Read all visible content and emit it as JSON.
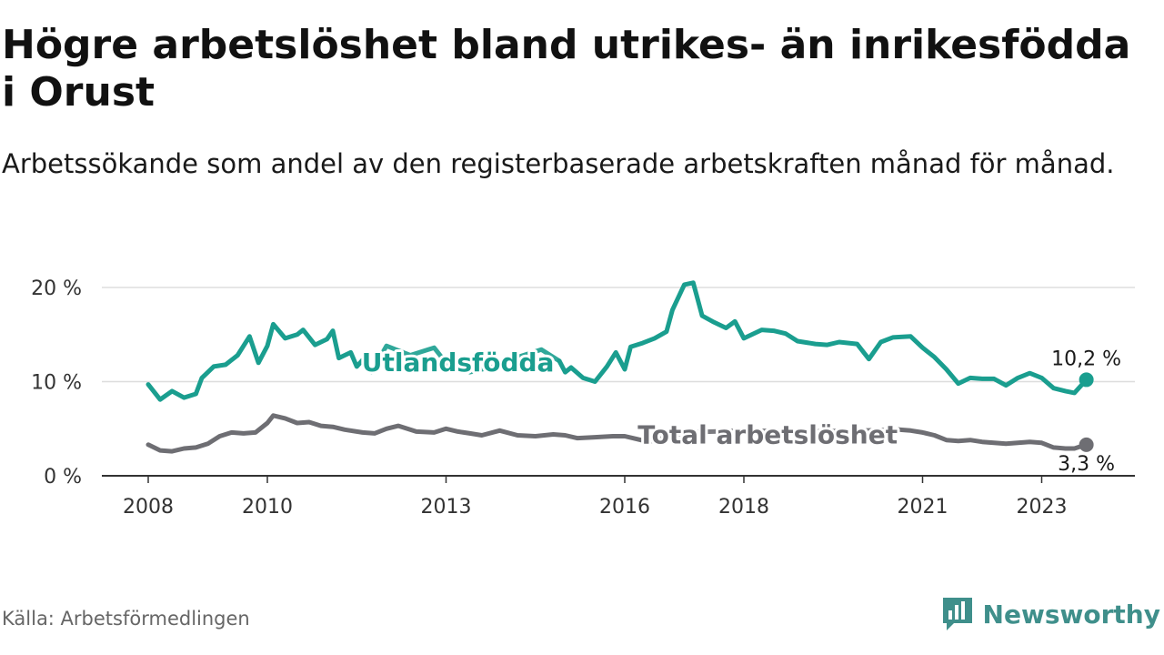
{
  "title": "Högre arbetslöshet bland utrikes- än inrikesfödda i Orust",
  "subtitle": "Arbetssökande som andel av den registerbaserade arbetskraften månad för månad.",
  "source": "Källa: Arbetsförmedlingen",
  "brand": "Newsworthy",
  "colors": {
    "foreign": "#1a9e8f",
    "total": "#6e6e73",
    "brand": "#3f8f8b"
  },
  "chart_data": {
    "type": "line",
    "title": "Högre arbetslöshet bland utrikes- än inrikesfödda i Orust",
    "xlabel": "",
    "ylabel": "",
    "xlim": [
      2008,
      2024.5
    ],
    "ylim": [
      0,
      20.5
    ],
    "x_ticks": [
      {
        "value": 2008,
        "label": "2008"
      },
      {
        "value": 2010,
        "label": "2010"
      },
      {
        "value": 2013,
        "label": "2013"
      },
      {
        "value": 2016,
        "label": "2016"
      },
      {
        "value": 2018,
        "label": "2018"
      },
      {
        "value": 2021,
        "label": "2021"
      },
      {
        "value": 2023,
        "label": "2023"
      }
    ],
    "y_ticks": [
      {
        "value": 0,
        "label": "0 %"
      },
      {
        "value": 10,
        "label": "10 %"
      },
      {
        "value": 20,
        "label": "20 %"
      }
    ],
    "grid": true,
    "series": [
      {
        "name": "Utlandsfödda",
        "color": "#1a9e8f",
        "end_label": "10,2 %",
        "points": [
          [
            2008.0,
            9.7
          ],
          [
            2008.2,
            8.1
          ],
          [
            2008.4,
            9.0
          ],
          [
            2008.6,
            8.3
          ],
          [
            2008.8,
            8.7
          ],
          [
            2008.9,
            10.4
          ],
          [
            2009.1,
            11.6
          ],
          [
            2009.3,
            11.8
          ],
          [
            2009.5,
            12.8
          ],
          [
            2009.7,
            14.8
          ],
          [
            2009.85,
            12.0
          ],
          [
            2010.0,
            13.8
          ],
          [
            2010.1,
            16.1
          ],
          [
            2010.3,
            14.6
          ],
          [
            2010.5,
            15.0
          ],
          [
            2010.6,
            15.5
          ],
          [
            2010.8,
            13.9
          ],
          [
            2011.0,
            14.5
          ],
          [
            2011.1,
            15.4
          ],
          [
            2011.2,
            12.5
          ],
          [
            2011.4,
            13.1
          ],
          [
            2011.5,
            11.6
          ],
          [
            2011.6,
            12.3
          ],
          [
            2011.75,
            11.0
          ]
        ],
        "hidden_points": [
          [
            2011.75,
            11.0
          ],
          [
            2012.0,
            13.8
          ],
          [
            2012.4,
            12.8
          ],
          [
            2012.8,
            13.6
          ],
          [
            2013.0,
            12.0
          ],
          [
            2013.4,
            11.0
          ],
          [
            2013.8,
            11.6
          ],
          [
            2014.2,
            12.6
          ],
          [
            2014.6,
            13.4
          ],
          [
            2014.9,
            12.2
          ]
        ],
        "points_b": [
          [
            2014.9,
            12.2
          ],
          [
            2015.0,
            11.0
          ],
          [
            2015.1,
            11.5
          ],
          [
            2015.3,
            10.4
          ],
          [
            2015.5,
            10.0
          ],
          [
            2015.7,
            11.6
          ],
          [
            2015.85,
            13.1
          ],
          [
            2016.0,
            11.3
          ],
          [
            2016.1,
            13.7
          ],
          [
            2016.3,
            14.1
          ],
          [
            2016.5,
            14.6
          ],
          [
            2016.7,
            15.3
          ],
          [
            2016.8,
            17.6
          ],
          [
            2017.0,
            20.3
          ],
          [
            2017.15,
            20.5
          ],
          [
            2017.3,
            17.0
          ],
          [
            2017.5,
            16.3
          ],
          [
            2017.7,
            15.7
          ],
          [
            2017.85,
            16.4
          ],
          [
            2018.0,
            14.6
          ],
          [
            2018.3,
            15.5
          ],
          [
            2018.5,
            15.4
          ],
          [
            2018.7,
            15.1
          ],
          [
            2018.9,
            14.3
          ],
          [
            2019.2,
            14.0
          ],
          [
            2019.4,
            13.9
          ],
          [
            2019.6,
            14.2
          ],
          [
            2019.9,
            14.0
          ],
          [
            2020.1,
            12.4
          ],
          [
            2020.3,
            14.2
          ],
          [
            2020.5,
            14.7
          ],
          [
            2020.8,
            14.8
          ],
          [
            2021.0,
            13.6
          ],
          [
            2021.2,
            12.6
          ],
          [
            2021.4,
            11.3
          ],
          [
            2021.6,
            9.8
          ],
          [
            2021.8,
            10.4
          ],
          [
            2022.0,
            10.3
          ],
          [
            2022.2,
            10.3
          ],
          [
            2022.4,
            9.6
          ],
          [
            2022.6,
            10.4
          ],
          [
            2022.8,
            10.9
          ],
          [
            2023.0,
            10.4
          ],
          [
            2023.2,
            9.3
          ],
          [
            2023.4,
            9.0
          ],
          [
            2023.55,
            8.8
          ],
          [
            2023.75,
            10.2
          ]
        ]
      },
      {
        "name": "Total arbetslöshet",
        "color": "#6e6e73",
        "end_label": "3,3 %",
        "points": [
          [
            2008.0,
            3.3
          ],
          [
            2008.2,
            2.7
          ],
          [
            2008.4,
            2.6
          ],
          [
            2008.6,
            2.9
          ],
          [
            2008.8,
            3.0
          ],
          [
            2009.0,
            3.4
          ],
          [
            2009.2,
            4.2
          ],
          [
            2009.4,
            4.6
          ],
          [
            2009.6,
            4.5
          ],
          [
            2009.8,
            4.6
          ],
          [
            2010.0,
            5.6
          ],
          [
            2010.1,
            6.4
          ],
          [
            2010.3,
            6.1
          ],
          [
            2010.5,
            5.6
          ],
          [
            2010.7,
            5.7
          ],
          [
            2010.9,
            5.3
          ],
          [
            2011.1,
            5.2
          ],
          [
            2011.3,
            4.9
          ],
          [
            2011.6,
            4.6
          ],
          [
            2011.8,
            4.5
          ],
          [
            2012.0,
            5.0
          ],
          [
            2012.2,
            5.3
          ],
          [
            2012.5,
            4.7
          ],
          [
            2012.8,
            4.6
          ],
          [
            2013.0,
            5.0
          ],
          [
            2013.2,
            4.7
          ],
          [
            2013.4,
            4.5
          ],
          [
            2013.6,
            4.3
          ],
          [
            2013.9,
            4.8
          ],
          [
            2014.2,
            4.3
          ],
          [
            2014.5,
            4.2
          ],
          [
            2014.8,
            4.4
          ],
          [
            2015.0,
            4.3
          ],
          [
            2015.2,
            4.0
          ],
          [
            2015.5,
            4.1
          ],
          [
            2015.8,
            4.2
          ],
          [
            2016.0,
            4.2
          ],
          [
            2016.2,
            3.9
          ],
          [
            2016.4,
            3.6
          ]
        ],
        "hidden_points": [
          [
            2016.4,
            3.6
          ],
          [
            2017.0,
            4.6
          ],
          [
            2018.0,
            4.8
          ],
          [
            2019.0,
            4.7
          ],
          [
            2020.0,
            4.8
          ],
          [
            2020.6,
            4.9
          ]
        ],
        "points_b": [
          [
            2020.6,
            4.9
          ],
          [
            2020.8,
            4.8
          ],
          [
            2021.0,
            4.6
          ],
          [
            2021.2,
            4.3
          ],
          [
            2021.4,
            3.8
          ],
          [
            2021.6,
            3.7
          ],
          [
            2021.8,
            3.8
          ],
          [
            2022.0,
            3.6
          ],
          [
            2022.2,
            3.5
          ],
          [
            2022.4,
            3.4
          ],
          [
            2022.6,
            3.5
          ],
          [
            2022.8,
            3.6
          ],
          [
            2023.0,
            3.5
          ],
          [
            2023.2,
            3.0
          ],
          [
            2023.4,
            2.9
          ],
          [
            2023.55,
            2.9
          ],
          [
            2023.75,
            3.3
          ]
        ]
      }
    ],
    "annotations": [
      {
        "series": "Utlandsfödda",
        "text": "Utlandsfödda",
        "x": 2013.2,
        "y": 12.0
      },
      {
        "series": "Total arbetslöshet",
        "text": "Total arbetslöshet",
        "x": 2018.4,
        "y": 4.3
      }
    ]
  }
}
